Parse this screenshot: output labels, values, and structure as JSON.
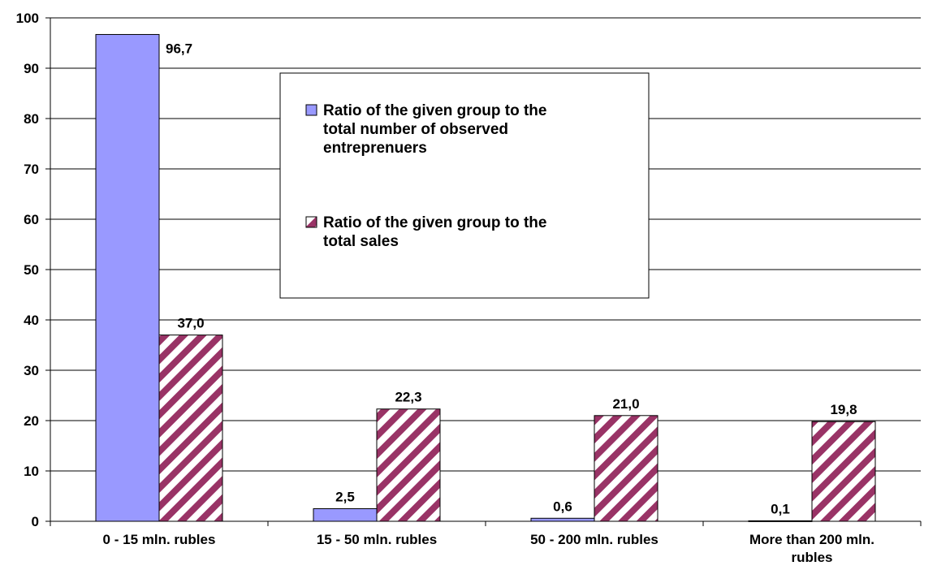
{
  "chart_data": {
    "type": "bar",
    "title": "",
    "xlabel": "",
    "ylabel": "",
    "ylim": [
      0,
      100
    ],
    "yticks": [
      "0",
      "10",
      "20",
      "30",
      "40",
      "50",
      "60",
      "70",
      "80",
      "90",
      "100"
    ],
    "grid": true,
    "legend_position": "top-right",
    "categories": [
      [
        "0 - 15 mln. rubles"
      ],
      [
        "15 - 50 mln. rubles"
      ],
      [
        "50 - 200 mln. rubles"
      ],
      [
        "More than 200 mln.",
        "rubles"
      ]
    ],
    "series": [
      {
        "name": [
          "Ratio of the given group to the",
          "total number of observed",
          "entreprenuers"
        ],
        "values": [
          96.7,
          2.5,
          0.6,
          0.1
        ],
        "labels": [
          "96,7",
          "2,5",
          "0,6",
          "0,1"
        ],
        "color": "#9999ff",
        "pattern": "solid"
      },
      {
        "name": [
          "Ratio of the given group to the",
          "total sales"
        ],
        "values": [
          37.0,
          22.3,
          21.0,
          19.8
        ],
        "labels": [
          "37,0",
          "22,3",
          "21,0",
          "19,8"
        ],
        "color": "#993366",
        "pattern": "diagonal-stripes"
      }
    ]
  }
}
